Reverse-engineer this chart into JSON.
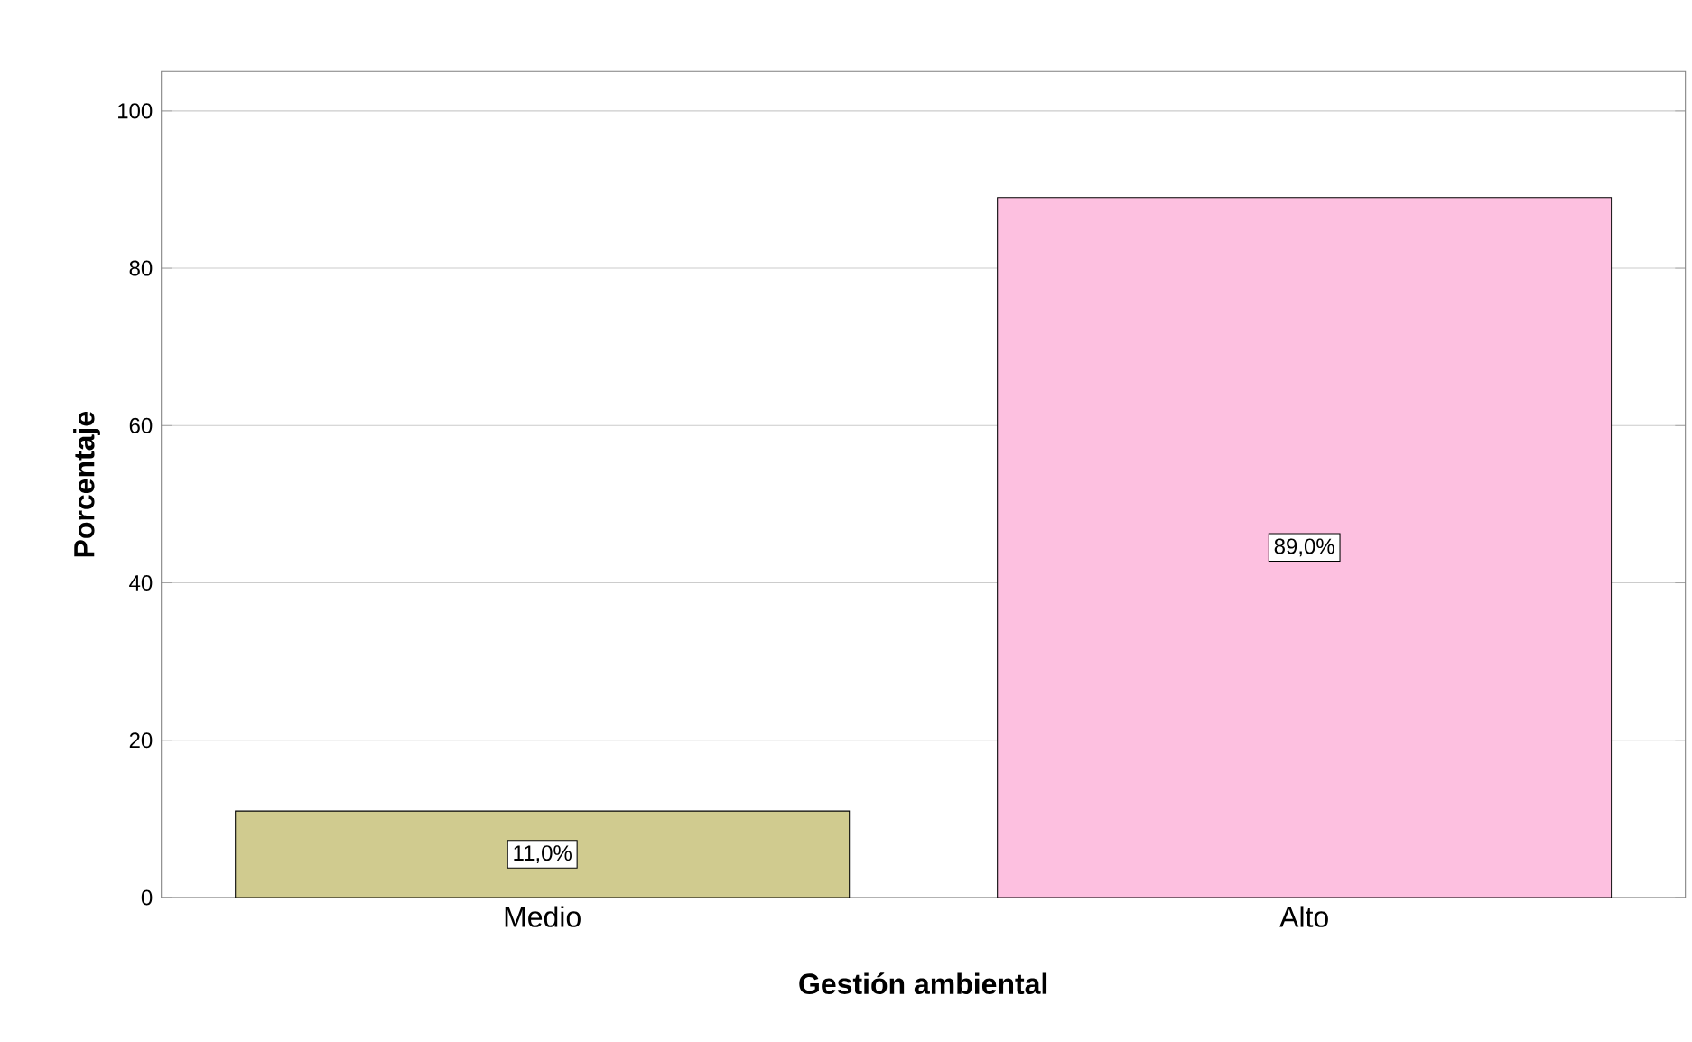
{
  "chart_data": {
    "type": "bar",
    "xlabel": "Gestión ambiental",
    "ylabel": "Porcentaje",
    "categories": [
      "Medio",
      "Alto"
    ],
    "values": [
      11.0,
      89.0
    ],
    "colors": [
      "#d0cb8f",
      "#fdc0e0"
    ],
    "value_labels": [
      "11,0%",
      "89,0%"
    ],
    "ylim": [
      0,
      105
    ],
    "yticks": [
      0,
      20,
      40,
      60,
      80,
      100
    ],
    "grid": "y"
  }
}
